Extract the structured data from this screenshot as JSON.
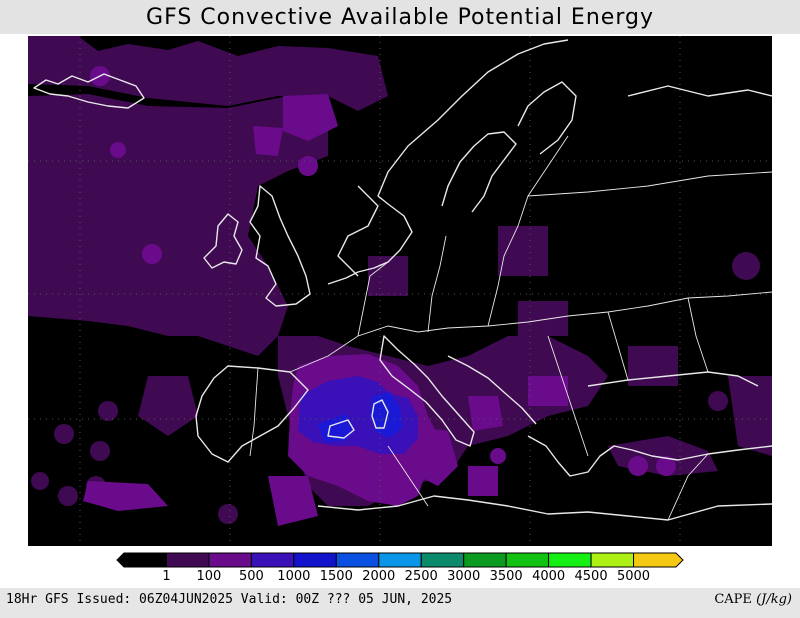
{
  "title": "GFS Convective Available Potential Energy",
  "colors": {
    "map_background": "#000000",
    "coastline": "#e8e8e8",
    "gridline": "#555555",
    "cape_1_100": "#3f0a52",
    "cape_100_500": "#6a0b8c",
    "cape_500_1000": "#3a10b8",
    "cape_1000_1500": "#1a1ad6"
  },
  "colorbar": {
    "colors": [
      "#000000",
      "#3f0a52",
      "#6a0b8c",
      "#3a10b8",
      "#1212cc",
      "#0a50e0",
      "#0a96e6",
      "#0a8a6a",
      "#0a9a20",
      "#12c212",
      "#14f014",
      "#aef014",
      "#f5c814"
    ],
    "labels": [
      "1",
      "100",
      "500",
      "1000",
      "1500",
      "2000",
      "2500",
      "3000",
      "3500",
      "4000",
      "4500",
      "5000"
    ]
  },
  "footer": {
    "left_text": "18Hr GFS Issued: 06Z04JUN2025 Valid: 00Z ??? 05 JUN, 2025",
    "right_label": "CAPE",
    "right_unit": "(J/kg)"
  }
}
